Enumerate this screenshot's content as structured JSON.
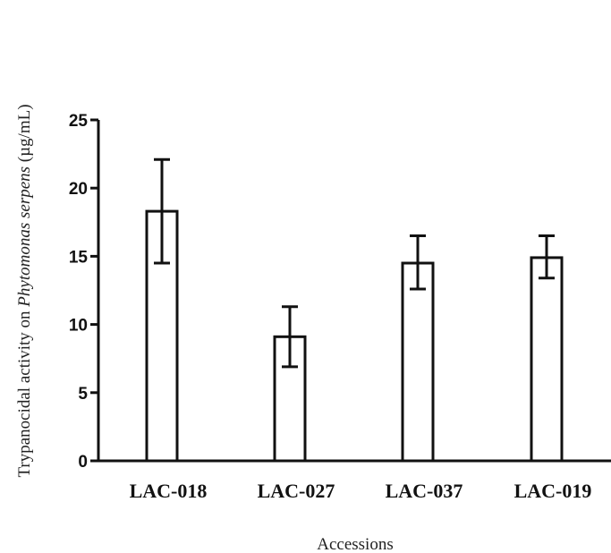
{
  "chart_data": {
    "type": "bar",
    "categories": [
      "LAC-018",
      "LAC-027",
      "LAC-037",
      "LAC-019"
    ],
    "values": [
      18.3,
      9.1,
      14.5,
      14.9
    ],
    "error_upper": [
      22.1,
      11.3,
      16.5,
      16.5
    ],
    "error_lower": [
      14.5,
      6.9,
      12.6,
      13.4
    ],
    "title": "",
    "xlabel": "Accessions",
    "ylabel_prefix": "Trypanocidal activity on ",
    "ylabel_italic": "Phytomonas serpens",
    "ylabel_suffix": " (µg/mL)",
    "ylim": [
      0,
      25
    ],
    "yticks": [
      0,
      5,
      10,
      15,
      20,
      25
    ],
    "grid": false,
    "legend": "none",
    "colors": {
      "bar_fill": "#ffffff",
      "bar_stroke": "#111111",
      "axis": "#111111"
    }
  }
}
